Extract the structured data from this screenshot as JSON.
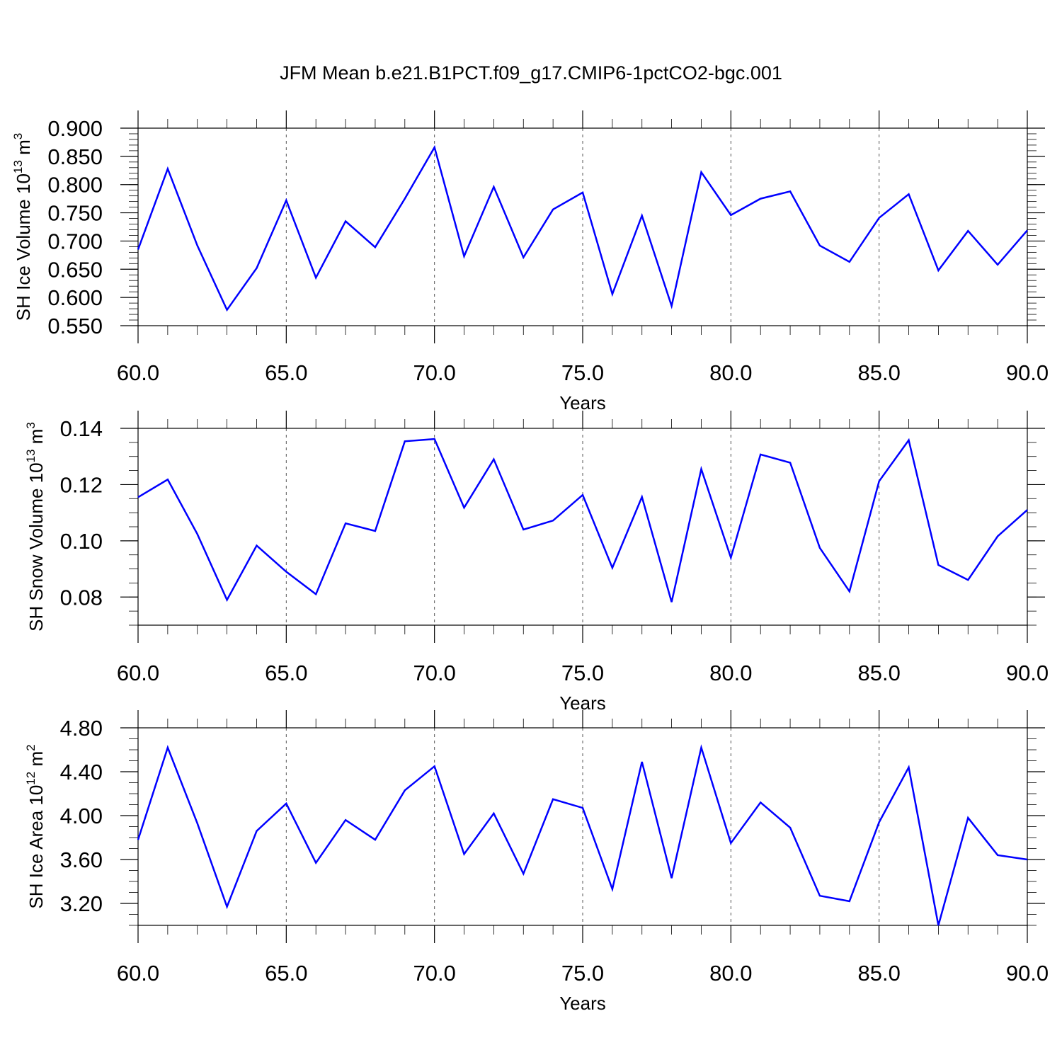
{
  "title": "JFM Mean b.e21.B1PCT.f09_g17.CMIP6-1pctCO2-bgc.001",
  "chart_data": [
    {
      "type": "line",
      "ylabel": "SH Ice Volume 10",
      "ylabel_sup": "13",
      "ylabel_unit": " m",
      "ylabel_unit_sup": "3",
      "xlabel": "Years",
      "xlim": [
        60,
        90
      ],
      "ylim": [
        0.55,
        0.9
      ],
      "xticks": [
        "60.0",
        "65.0",
        "70.0",
        "75.0",
        "80.0",
        "85.0",
        "90.0"
      ],
      "yticks": [
        "0.550",
        "0.600",
        "0.650",
        "0.700",
        "0.750",
        "0.800",
        "0.850",
        "0.900"
      ],
      "ytick_values": [
        0.55,
        0.6,
        0.65,
        0.7,
        0.75,
        0.8,
        0.85,
        0.9
      ],
      "line_color": "#0000ff",
      "grid": "vertical dashed at x major ticks",
      "x": [
        60,
        61,
        62,
        63,
        64,
        65,
        66,
        67,
        68,
        69,
        70,
        71,
        72,
        73,
        74,
        75,
        76,
        77,
        78,
        79,
        80,
        81,
        82,
        83,
        84,
        85,
        86,
        87,
        88,
        89,
        90
      ],
      "y": [
        0.685,
        0.828,
        0.692,
        0.578,
        0.652,
        0.772,
        0.635,
        0.735,
        0.689,
        0.775,
        0.866,
        0.673,
        0.796,
        0.671,
        0.756,
        0.786,
        0.606,
        0.745,
        0.585,
        0.822,
        0.746,
        0.775,
        0.788,
        0.692,
        0.663,
        0.741,
        0.783,
        0.648,
        0.718,
        0.658,
        0.719
      ]
    },
    {
      "type": "line",
      "ylabel": "SH Snow Volume 10",
      "ylabel_sup": "13",
      "ylabel_unit": " m",
      "ylabel_unit_sup": "3",
      "xlabel": "Years",
      "xlim": [
        60,
        90
      ],
      "ylim": [
        0.07,
        0.14
      ],
      "xticks": [
        "60.0",
        "65.0",
        "70.0",
        "75.0",
        "80.0",
        "85.0",
        "90.0"
      ],
      "yticks": [
        "0.08",
        "0.10",
        "0.12",
        "0.14"
      ],
      "ytick_values": [
        0.08,
        0.1,
        0.12,
        0.14
      ],
      "line_color": "#0000ff",
      "grid": "vertical dashed at x major ticks",
      "x": [
        60,
        61,
        62,
        63,
        64,
        65,
        66,
        67,
        68,
        69,
        70,
        71,
        72,
        73,
        74,
        75,
        76,
        77,
        78,
        79,
        80,
        81,
        82,
        83,
        84,
        85,
        86,
        87,
        88,
        89,
        90
      ],
      "y": [
        0.1155,
        0.1218,
        0.1024,
        0.079,
        0.0983,
        0.089,
        0.081,
        0.1062,
        0.1035,
        0.1354,
        0.1362,
        0.1118,
        0.129,
        0.104,
        0.1072,
        0.1163,
        0.0904,
        0.1156,
        0.0782,
        0.1255,
        0.094,
        0.1307,
        0.1278,
        0.0975,
        0.082,
        0.1212,
        0.1358,
        0.0914,
        0.0861,
        0.1016,
        0.111
      ]
    },
    {
      "type": "line",
      "ylabel": "SH Ice Area 10",
      "ylabel_sup": "12",
      "ylabel_unit": " m",
      "ylabel_unit_sup": "2",
      "xlabel": "Years",
      "xlim": [
        60,
        90
      ],
      "ylim": [
        3.0,
        4.8
      ],
      "xticks": [
        "60.0",
        "65.0",
        "70.0",
        "75.0",
        "80.0",
        "85.0",
        "90.0"
      ],
      "yticks": [
        "3.20",
        "3.60",
        "4.00",
        "4.40",
        "4.80"
      ],
      "ytick_values": [
        3.2,
        3.6,
        4.0,
        4.4,
        4.8
      ],
      "line_color": "#0000ff",
      "grid": "vertical dashed at x major ticks",
      "x": [
        60,
        61,
        62,
        63,
        64,
        65,
        66,
        67,
        68,
        69,
        70,
        71,
        72,
        73,
        74,
        75,
        76,
        77,
        78,
        79,
        80,
        81,
        82,
        83,
        84,
        85,
        86,
        87,
        88,
        89,
        90
      ],
      "y": [
        3.78,
        4.62,
        3.93,
        3.17,
        3.86,
        4.11,
        3.57,
        3.96,
        3.78,
        4.23,
        4.45,
        3.65,
        4.02,
        3.47,
        4.15,
        4.07,
        3.33,
        4.49,
        3.43,
        4.62,
        3.75,
        4.12,
        3.89,
        3.27,
        3.22,
        3.94,
        4.44,
        3.0,
        3.98,
        3.64,
        3.6
      ]
    }
  ]
}
